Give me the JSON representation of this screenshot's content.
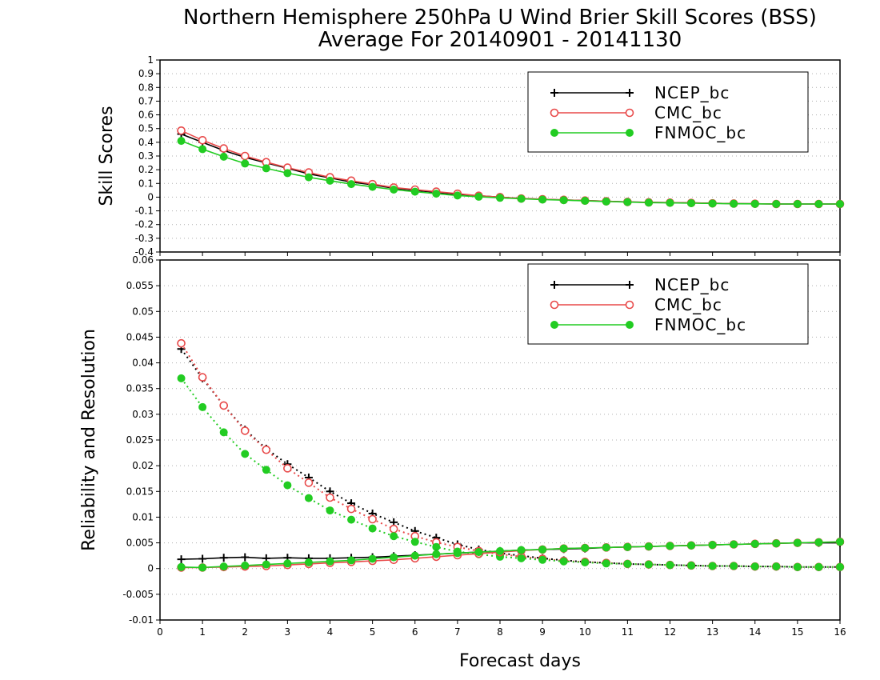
{
  "title": {
    "line1": "Northern Hemisphere 250hPa U Wind Brier Skill Scores (BSS)",
    "line2": "Average For 20140901 - 20141130"
  },
  "colors": {
    "NCEP_bc": "#000000",
    "CMC_bc": "#e84a4a",
    "FNMOC_bc": "#22cc22"
  },
  "chart_data": [
    {
      "type": "line",
      "title": "Northern Hemisphere 250hPa U Wind Brier Skill Scores (BSS) Average For 20140901 - 20141130",
      "xlabel": "",
      "ylabel": "Skill Scores",
      "xlim": [
        0,
        16
      ],
      "ylim": [
        -0.4,
        1
      ],
      "yticks": [
        "1",
        "0.9",
        "0.8",
        "0.7",
        "0.6",
        "0.5",
        "0.4",
        "0.3",
        "0.2",
        "0.1",
        "0",
        "-0.1",
        "-0.2",
        "-0.3",
        "-0.4"
      ],
      "grid": true,
      "legend": "top-right",
      "x": [
        0.5,
        1,
        1.5,
        2,
        2.5,
        3,
        3.5,
        4,
        4.5,
        5,
        5.5,
        6,
        6.5,
        7,
        7.5,
        8,
        8.5,
        9,
        9.5,
        10,
        10.5,
        11,
        11.5,
        12,
        12.5,
        13,
        13.5,
        14,
        14.5,
        15,
        15.5,
        16
      ],
      "series": [
        {
          "name": "NCEP_bc",
          "marker": "plus",
          "style": "solid",
          "values": [
            0.46,
            0.4,
            0.34,
            0.29,
            0.25,
            0.21,
            0.17,
            0.14,
            0.11,
            0.09,
            0.065,
            0.05,
            0.035,
            0.02,
            0.01,
            0.0,
            -0.01,
            -0.015,
            -0.02,
            -0.025,
            -0.03,
            -0.035,
            -0.038,
            -0.04,
            -0.042,
            -0.045,
            -0.047,
            -0.048,
            -0.05,
            -0.05,
            -0.05,
            -0.05
          ]
        },
        {
          "name": "CMC_bc",
          "marker": "open-circle",
          "style": "solid",
          "values": [
            0.485,
            0.415,
            0.355,
            0.3,
            0.255,
            0.215,
            0.18,
            0.145,
            0.12,
            0.095,
            0.07,
            0.055,
            0.04,
            0.025,
            0.01,
            0.0,
            -0.01,
            -0.015,
            -0.02,
            -0.025,
            -0.03,
            -0.035,
            -0.038,
            -0.04,
            -0.042,
            -0.045,
            -0.047,
            -0.048,
            -0.05,
            -0.05,
            -0.05,
            -0.05
          ]
        },
        {
          "name": "FNMOC_bc",
          "marker": "filled-circle",
          "style": "solid",
          "values": [
            0.41,
            0.35,
            0.295,
            0.245,
            0.21,
            0.175,
            0.145,
            0.12,
            0.095,
            0.075,
            0.055,
            0.04,
            0.025,
            0.012,
            0.003,
            -0.005,
            -0.012,
            -0.018,
            -0.022,
            -0.027,
            -0.032,
            -0.036,
            -0.04,
            -0.042,
            -0.044,
            -0.046,
            -0.048,
            -0.049,
            -0.05,
            -0.05,
            -0.05,
            -0.05
          ]
        }
      ]
    },
    {
      "type": "line",
      "xlabel": "Forecast days",
      "ylabel": "Reliability and Resolution",
      "xlim": [
        0,
        16
      ],
      "ylim": [
        -0.01,
        0.06
      ],
      "yticks": [
        "0.06",
        "0.055",
        "0.05",
        "0.045",
        "0.04",
        "0.035",
        "0.03",
        "0.025",
        "0.02",
        "0.015",
        "0.01",
        "0.005",
        "0",
        "-0.005",
        "-0.01"
      ],
      "xticks": [
        "0",
        "1",
        "2",
        "3",
        "4",
        "5",
        "6",
        "7",
        "8",
        "9",
        "10",
        "11",
        "12",
        "13",
        "14",
        "15",
        "16"
      ],
      "grid": true,
      "legend": "top-right",
      "x": [
        0.5,
        1,
        1.5,
        2,
        2.5,
        3,
        3.5,
        4,
        4.5,
        5,
        5.5,
        6,
        6.5,
        7,
        7.5,
        8,
        8.5,
        9,
        9.5,
        10,
        10.5,
        11,
        11.5,
        12,
        12.5,
        13,
        13.5,
        14,
        14.5,
        15,
        15.5,
        16
      ],
      "series": [
        {
          "name": "NCEP_bc",
          "marker": "plus",
          "style": "dotted",
          "measure": "reliability",
          "values": [
            0.0427,
            0.037,
            0.0317,
            0.027,
            0.0233,
            0.0203,
            0.0177,
            0.015,
            0.0127,
            0.0107,
            0.009,
            0.0073,
            0.006,
            0.0047,
            0.0037,
            0.003,
            0.0025,
            0.002,
            0.0016,
            0.0013,
            0.0011,
            0.0009,
            0.0008,
            0.0007,
            0.0006,
            0.0005,
            0.0005,
            0.0004,
            0.0004,
            0.0003,
            0.0003,
            0.0003
          ]
        },
        {
          "name": "CMC_bc",
          "marker": "open-circle",
          "style": "dotted",
          "measure": "reliability",
          "values": [
            0.0438,
            0.0372,
            0.0317,
            0.0268,
            0.0231,
            0.0195,
            0.0167,
            0.0138,
            0.0116,
            0.0096,
            0.0077,
            0.0063,
            0.0051,
            0.0042,
            0.0034,
            0.0028,
            0.0023,
            0.0019,
            0.0015,
            0.0013,
            0.0011,
            0.0009,
            0.0008,
            0.0007,
            0.0006,
            0.0005,
            0.0005,
            0.0004,
            0.0004,
            0.0003,
            0.0003,
            0.0003
          ]
        },
        {
          "name": "FNMOC_bc",
          "marker": "filled-circle",
          "style": "dotted",
          "measure": "reliability",
          "values": [
            0.037,
            0.0314,
            0.0265,
            0.0223,
            0.0192,
            0.0162,
            0.0137,
            0.0113,
            0.0095,
            0.0078,
            0.0063,
            0.0052,
            0.0042,
            0.0033,
            0.0028,
            0.0023,
            0.002,
            0.0017,
            0.0014,
            0.0012,
            0.001,
            0.0009,
            0.0008,
            0.0007,
            0.0006,
            0.0005,
            0.0005,
            0.0004,
            0.0004,
            0.0003,
            0.0003,
            0.0003
          ]
        },
        {
          "name": "NCEP_bc",
          "marker": "plus",
          "style": "solid",
          "measure": "resolution",
          "values": [
            0.0018,
            0.0019,
            0.0021,
            0.0022,
            0.002,
            0.0021,
            0.002,
            0.002,
            0.0021,
            0.0022,
            0.0024,
            0.0026,
            0.0028,
            0.003,
            0.0032,
            0.0034,
            0.0036,
            0.0037,
            0.0038,
            0.0039,
            0.0041,
            0.0042,
            0.0043,
            0.0044,
            0.0045,
            0.0046,
            0.0047,
            0.0048,
            0.0049,
            0.005,
            0.005,
            0.005
          ]
        },
        {
          "name": "CMC_bc",
          "marker": "open-circle",
          "style": "solid",
          "measure": "resolution",
          "values": [
            0.0002,
            0.0002,
            0.0003,
            0.0004,
            0.0005,
            0.0007,
            0.0009,
            0.0011,
            0.0013,
            0.0015,
            0.0017,
            0.002,
            0.0023,
            0.0026,
            0.0029,
            0.0032,
            0.0035,
            0.0037,
            0.0039,
            0.004,
            0.0041,
            0.0042,
            0.0043,
            0.0044,
            0.0045,
            0.0046,
            0.0047,
            0.0048,
            0.0049,
            0.005,
            0.0051,
            0.0052
          ]
        },
        {
          "name": "FNMOC_bc",
          "marker": "filled-circle",
          "style": "solid",
          "measure": "resolution",
          "values": [
            0.0003,
            0.0002,
            0.0004,
            0.0006,
            0.0008,
            0.001,
            0.0012,
            0.0014,
            0.0016,
            0.0019,
            0.0022,
            0.0025,
            0.0028,
            0.003,
            0.0032,
            0.0034,
            0.0036,
            0.0037,
            0.0039,
            0.004,
            0.0041,
            0.0042,
            0.0043,
            0.0044,
            0.0045,
            0.0046,
            0.0047,
            0.0048,
            0.0049,
            0.005,
            0.0051,
            0.0052
          ]
        }
      ]
    }
  ]
}
